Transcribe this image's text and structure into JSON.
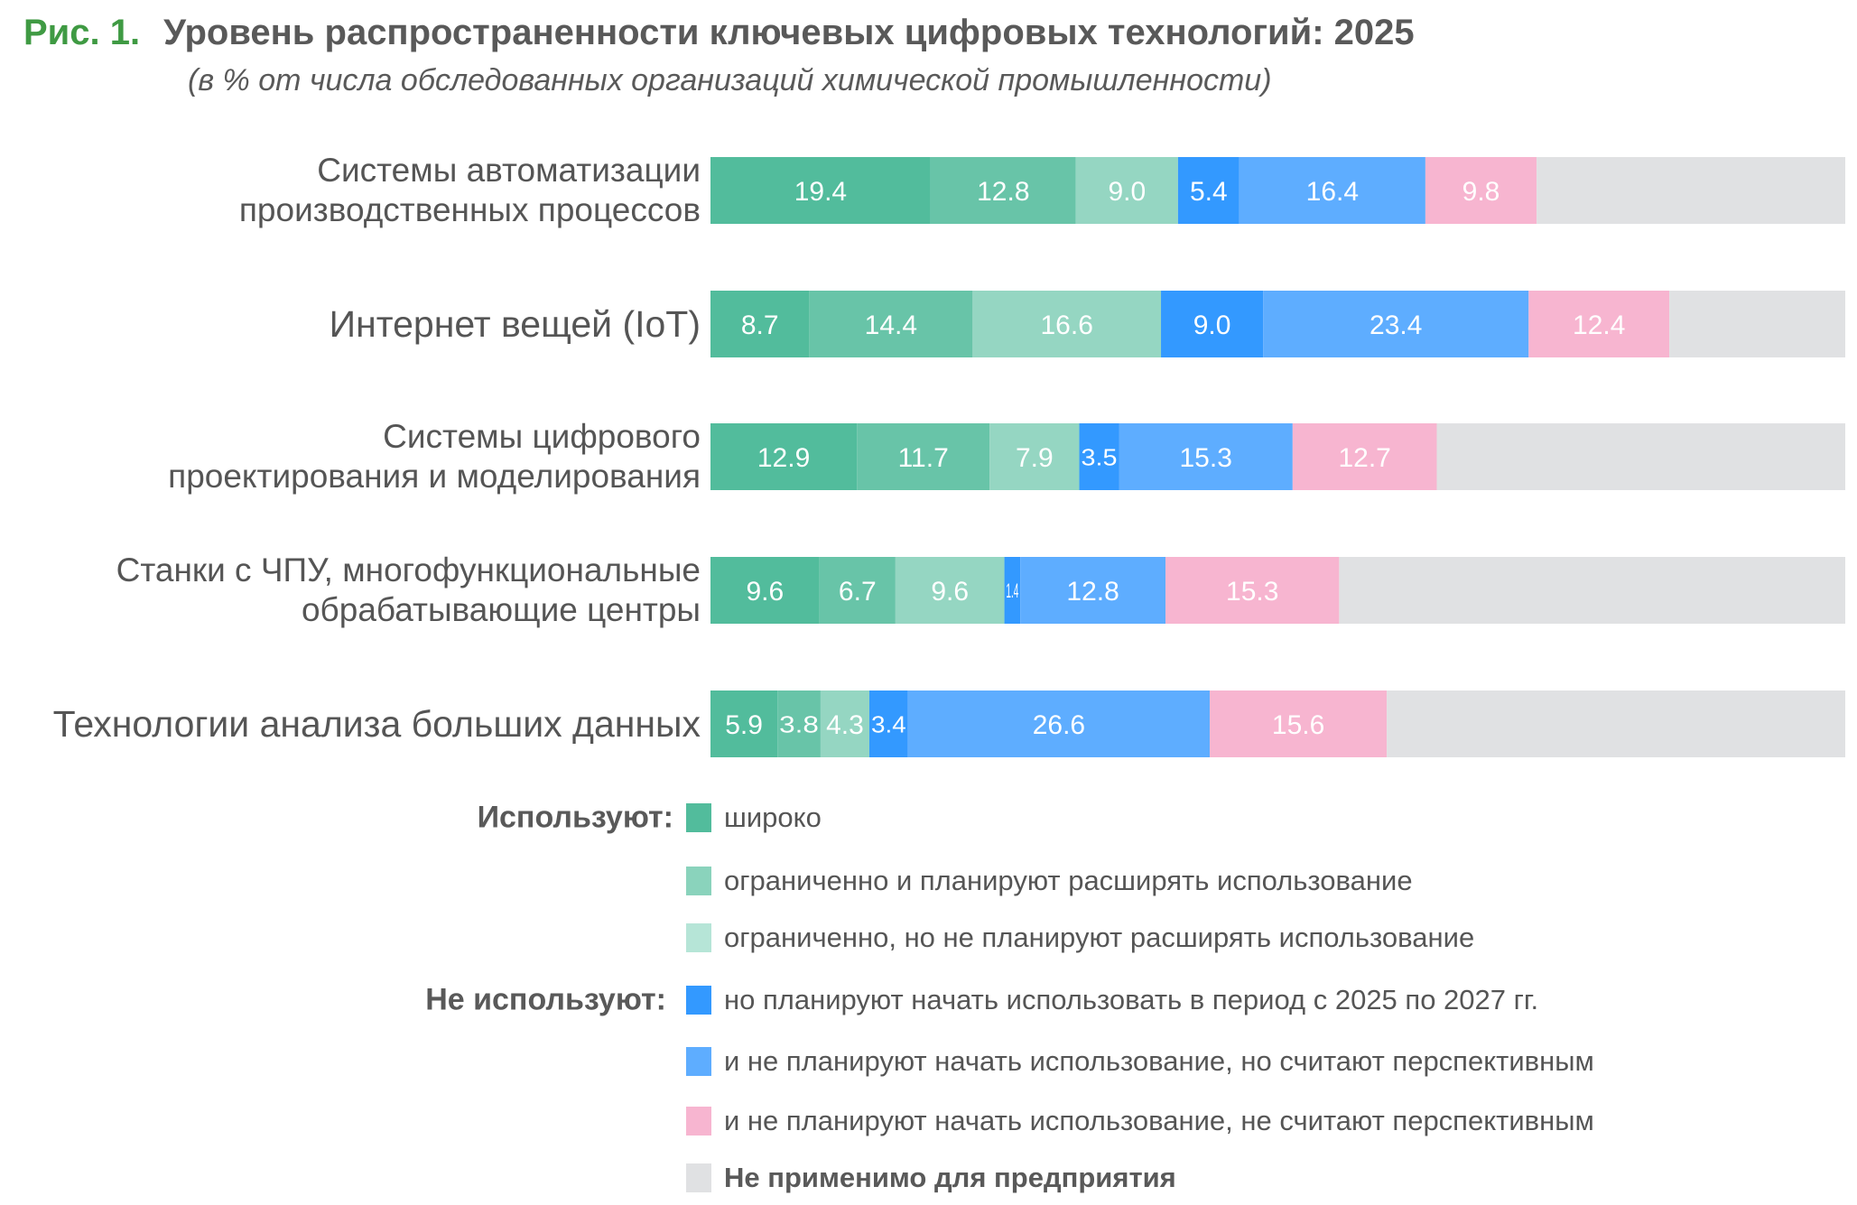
{
  "figure_label": "Рис. 1.",
  "chart_data": {
    "type": "bar",
    "orientation": "horizontal",
    "stacked": true,
    "title": "Уровень распространенности ключевых цифровых технологий: 2025",
    "subtitle": "(в % от числа обследованных организаций химической промышленности)",
    "xlim": [
      0,
      100
    ],
    "grid": false,
    "legend_position": "bottom",
    "categories": [
      "Системы автоматизации\nпроизводственных процессов",
      "Интернет вещей (IoT)",
      "Системы цифрового\nпроектирования и моделирования",
      "Станки с ЧПУ, многофункциональные\nобрабатывающие центры",
      "Технологии анализа больших данных"
    ],
    "legend_groups": [
      "Используют:",
      "Не используют:"
    ],
    "series": [
      {
        "name": "широко",
        "group": 0,
        "color": "#52bc9c",
        "legend_color": "#52bc9c",
        "values": [
          19.4,
          8.7,
          12.9,
          9.6,
          5.9
        ]
      },
      {
        "name": "ограниченно и планируют расширять использование",
        "group": 0,
        "color": "#68c4a8",
        "legend_color": "#8ad3bc",
        "values": [
          12.8,
          14.4,
          11.7,
          6.7,
          3.8
        ]
      },
      {
        "name": "ограниченно, но не планируют расширять использование",
        "group": 0,
        "color": "#95d6c2",
        "legend_color": "#b6e5d7",
        "values": [
          9.0,
          16.6,
          7.9,
          9.6,
          4.3
        ]
      },
      {
        "name": "но планируют начать использовать в период с 2025 по 2027 гг.",
        "group": 1,
        "color": "#3399ff",
        "legend_color": "#3399ff",
        "values": [
          5.4,
          9.0,
          3.5,
          1.4,
          3.4
        ]
      },
      {
        "name": "и не планируют начать использование, но считают перспективным",
        "group": 1,
        "color": "#5eadff",
        "legend_color": "#5eadff",
        "values": [
          16.4,
          23.4,
          15.3,
          12.8,
          26.6
        ]
      },
      {
        "name": "и не планируют начать использование, не считают перспективным",
        "group": 1,
        "color": "#f7b5d0",
        "legend_color": "#f7b5d0",
        "values": [
          9.8,
          12.4,
          12.7,
          15.3,
          15.6
        ]
      }
    ],
    "remainder": {
      "name": "Не применимо для предприятия",
      "color": "#e0e1e3",
      "bold": true
    }
  }
}
